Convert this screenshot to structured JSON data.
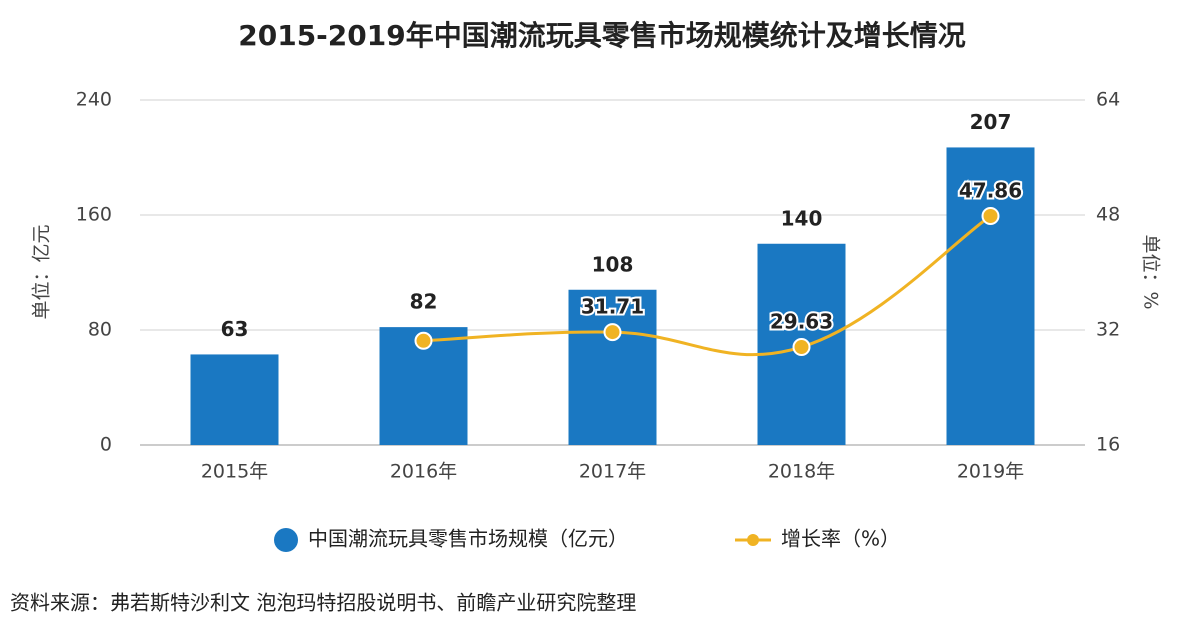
{
  "chart_data": {
    "type": "bar",
    "title": "2015-2019年中国潮流玩具零售市场规模统计及增长情况",
    "y_label": "单位：亿元",
    "y2_label": "单位：%",
    "categories": [
      "2015年",
      "2016年",
      "2017年",
      "2018年",
      "2019年"
    ],
    "series": [
      {
        "name": "中国潮流玩具零售市场规模（亿元）",
        "type": "bar",
        "color": "#1a78c2",
        "values": [
          63,
          82,
          108,
          140,
          207
        ]
      },
      {
        "name": "增长率（%）",
        "type": "line",
        "axis": "y2",
        "color": "#f0b323",
        "values": [
          null,
          30.5,
          31.71,
          29.63,
          47.86
        ],
        "value_labels": [
          null,
          null,
          "31.71",
          "29.63",
          "47.86"
        ]
      }
    ],
    "ylim": [
      0,
      240
    ],
    "yticks": [
      0,
      80,
      160,
      240
    ],
    "y2lim": [
      16,
      64
    ],
    "y2ticks": [
      16,
      32,
      48,
      64
    ],
    "grid": true,
    "source": "资料来源：弗若斯特沙利文 泡泡玛特招股说明书、前瞻产业研究院整理"
  }
}
